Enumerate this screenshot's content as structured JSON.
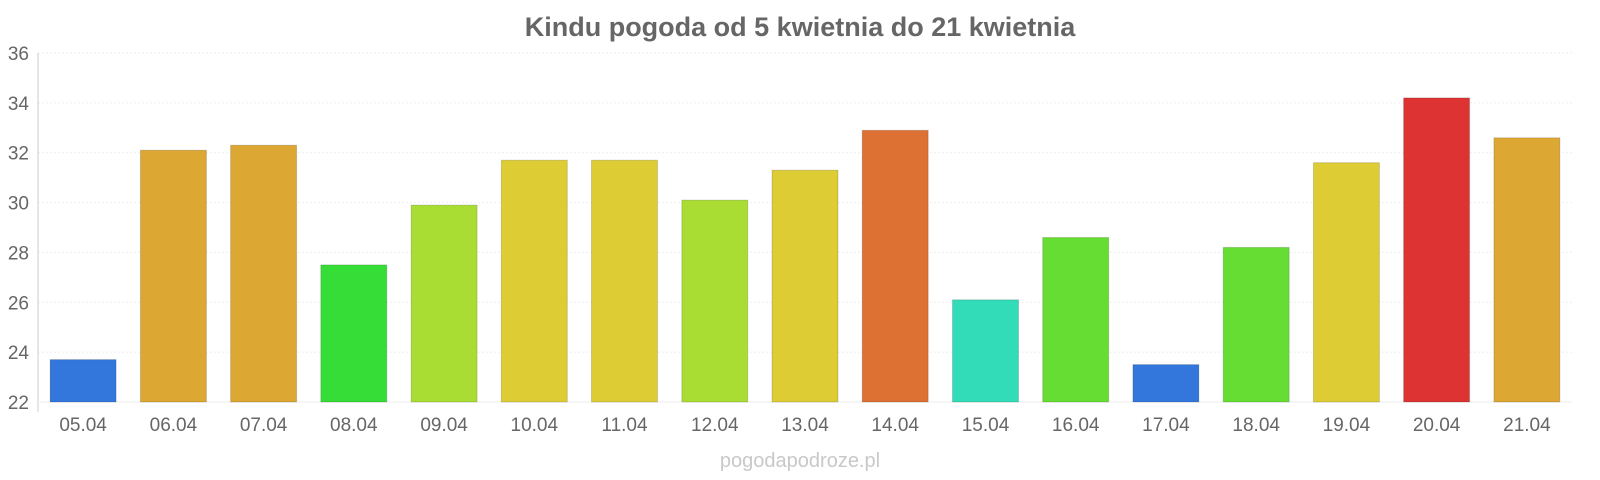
{
  "chart_data": {
    "type": "bar",
    "title": "Kindu pogoda od 5 kwietnia do 21 kwietnia",
    "xlabel": "",
    "ylabel": "",
    "categories": [
      "05.04",
      "06.04",
      "07.04",
      "08.04",
      "09.04",
      "10.04",
      "11.04",
      "12.04",
      "13.04",
      "14.04",
      "15.04",
      "16.04",
      "17.04",
      "18.04",
      "19.04",
      "20.04",
      "21.04"
    ],
    "values": [
      23.7,
      32.1,
      32.3,
      27.5,
      29.9,
      31.7,
      31.7,
      30.1,
      31.3,
      32.9,
      26.1,
      28.6,
      23.5,
      28.2,
      31.6,
      34.2,
      32.6
    ],
    "colors": [
      "#3377dd",
      "#dda733",
      "#dda733",
      "#37dd37",
      "#aadd33",
      "#ddcc33",
      "#ddcc33",
      "#aadd33",
      "#ddcc33",
      "#dd7033",
      "#33dcb8",
      "#66dd33",
      "#3377dd",
      "#66dd33",
      "#ddcc33",
      "#dd3333",
      "#dda733"
    ],
    "ylim": [
      22,
      36
    ],
    "yticks": [
      "22",
      "24",
      "26",
      "28",
      "30",
      "32",
      "34",
      "36"
    ],
    "grid": true,
    "legend": "none"
  },
  "watermark": "pogodapodroze.pl"
}
